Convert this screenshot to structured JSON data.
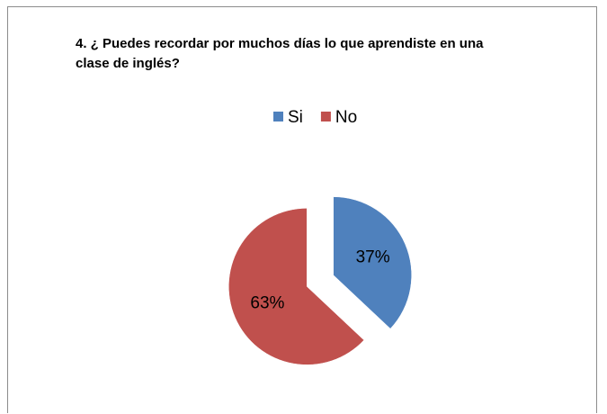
{
  "chart_data": {
    "type": "pie",
    "title": "4. ¿ Puedes recordar por muchos días lo que aprendiste en una clase de inglés?",
    "categories": [
      "Si",
      "No"
    ],
    "values": [
      37,
      63
    ],
    "value_labels": [
      "37%",
      "63%"
    ],
    "colors": [
      "#4f81bd",
      "#c0504d"
    ],
    "legend": "top"
  }
}
